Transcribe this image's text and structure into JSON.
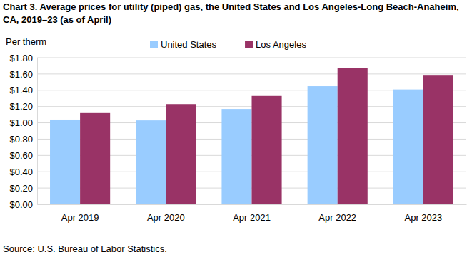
{
  "chart_data": {
    "type": "bar",
    "title": "Chart 3. Average prices for utility (piped) gas, the United States and Los Angeles-Long Beach-Anaheim, CA, 2019–23 (as of April)",
    "y_label": "Per therm",
    "source": "Source: U.S. Bureau of Labor Statistics.",
    "categories": [
      "Apr 2019",
      "Apr 2020",
      "Apr 2021",
      "Apr 2022",
      "Apr 2023"
    ],
    "series": [
      {
        "name": "United States",
        "color": "#99ccff",
        "values": [
          1.04,
          1.03,
          1.17,
          1.45,
          1.41
        ]
      },
      {
        "name": "Los Angeles",
        "color": "#993366",
        "values": [
          1.12,
          1.23,
          1.33,
          1.67,
          1.58
        ]
      }
    ],
    "ylim": [
      0,
      1.8
    ],
    "yticks": [
      {
        "value": 0,
        "label": "$0.00"
      },
      {
        "value": 0.2,
        "label": "$0.20"
      },
      {
        "value": 0.4,
        "label": "$0.40"
      },
      {
        "value": 0.6,
        "label": "$0.60"
      },
      {
        "value": 0.8,
        "label": "$0.80"
      },
      {
        "value": 1,
        "label": "$1.00"
      },
      {
        "value": 1.2,
        "label": "$1.20"
      },
      {
        "value": 1.4,
        "label": "$1.40"
      },
      {
        "value": 1.6,
        "label": "$1.60"
      },
      {
        "value": 1.8,
        "label": "$1.80"
      }
    ],
    "grid": true,
    "legend": "top"
  }
}
